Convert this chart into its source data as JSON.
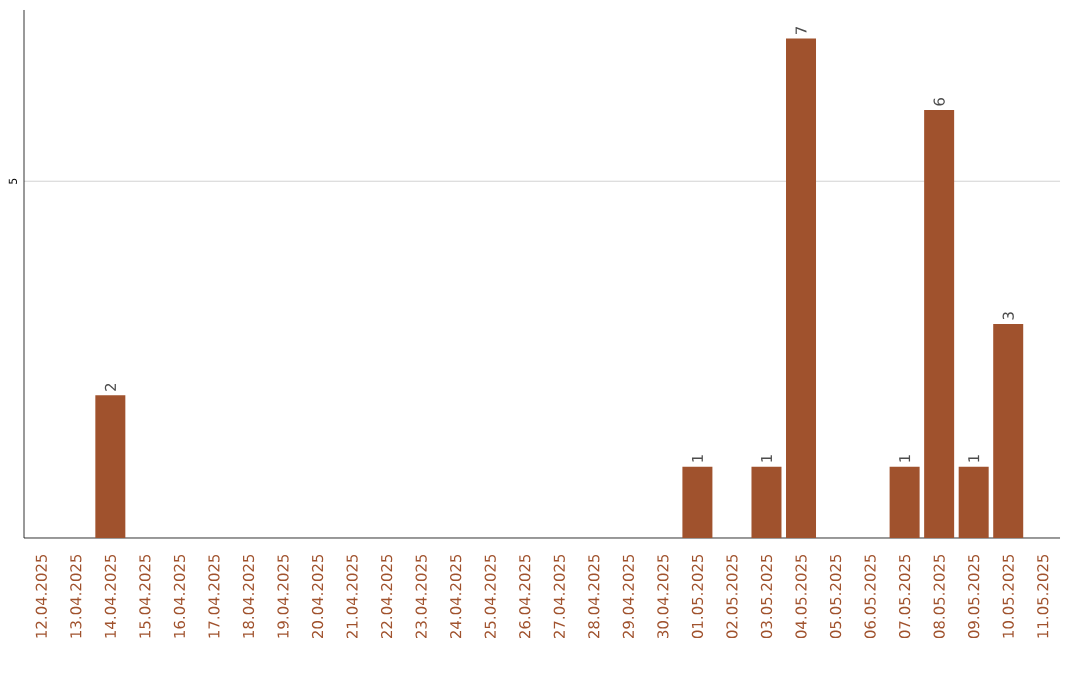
{
  "chart_data": {
    "type": "bar",
    "categories": [
      "12.04.2025",
      "13.04.2025",
      "14.04.2025",
      "15.04.2025",
      "16.04.2025",
      "17.04.2025",
      "18.04.2025",
      "19.04.2025",
      "20.04.2025",
      "21.04.2025",
      "22.04.2025",
      "23.04.2025",
      "24.04.2025",
      "25.04.2025",
      "26.04.2025",
      "27.04.2025",
      "28.04.2025",
      "29.04.2025",
      "30.04.2025",
      "01.05.2025",
      "02.05.2025",
      "03.05.2025",
      "04.05.2025",
      "05.05.2025",
      "06.05.2025",
      "07.05.2025",
      "08.05.2025",
      "09.05.2025",
      "10.05.2025",
      "11.05.2025"
    ],
    "values": [
      0,
      0,
      2,
      0,
      0,
      0,
      0,
      0,
      0,
      0,
      0,
      0,
      0,
      0,
      0,
      0,
      0,
      0,
      0,
      1,
      0,
      1,
      7,
      0,
      0,
      1,
      6,
      1,
      3,
      0
    ],
    "value_labels": [
      null,
      null,
      "2",
      null,
      null,
      null,
      null,
      null,
      null,
      null,
      null,
      null,
      null,
      null,
      null,
      null,
      null,
      null,
      null,
      "1",
      null,
      "1",
      "7",
      null,
      null,
      "1",
      "6",
      "1",
      "3",
      null
    ],
    "color": "#a0522d",
    "ylim": [
      0,
      7.4
    ],
    "yticks": [
      5
    ],
    "grid": "y"
  }
}
